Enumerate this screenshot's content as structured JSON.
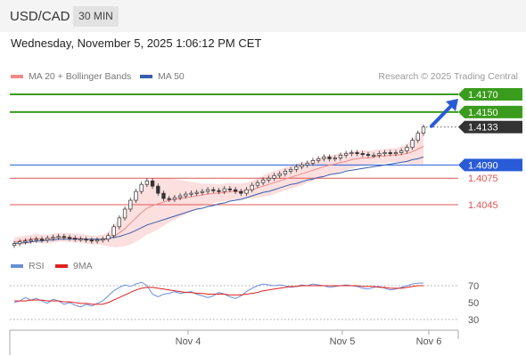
{
  "header": {
    "symbol": "USD/CAD",
    "interval": "30 MIN"
  },
  "timestamp": "Wednesday, November 5, 2025 1:06:12 PM CET",
  "legend": {
    "ma20": {
      "label": "MA 20 + Bollinger Bands",
      "color": "#f08a8a"
    },
    "ma50": {
      "label": "MA 50",
      "color": "#3a5da8"
    }
  },
  "credit": "Research © 2025 Trading Central",
  "rsi_legend": {
    "rsi": {
      "label": "RSI",
      "color": "#6a8fd8"
    },
    "ma9": {
      "label": "9MA",
      "color": "#e02020"
    }
  },
  "chart_data": {
    "type": "candlestick",
    "instrument": "USD/CAD",
    "interval": "30 MIN",
    "price_axis_range": [
      1.4005,
      1.4185
    ],
    "levels": [
      {
        "value": "1.4170",
        "color": "#3a9c1c",
        "style": "resistance"
      },
      {
        "value": "1.4150",
        "color": "#3a9c1c",
        "style": "resistance"
      },
      {
        "value": "1.4133",
        "color": "#333333",
        "style": "last-price"
      },
      {
        "value": "1.4090",
        "color": "#2a5bd7",
        "style": "pivot"
      },
      {
        "value": "1.4075",
        "color": "#e05555",
        "style": "support"
      },
      {
        "value": "1.4045",
        "color": "#e05555",
        "style": "support"
      }
    ],
    "x_ticks": [
      "Nov 4",
      "Nov 5",
      "Nov 6"
    ],
    "trend_arrow": {
      "from": 1.4133,
      "to": 1.4165,
      "direction": "up",
      "color": "#2a5bd7"
    },
    "price_series": [
      1.4001,
      1.4003,
      1.4004,
      1.4005,
      1.4006,
      1.4005,
      1.4007,
      1.4008,
      1.4009,
      1.4008,
      1.4007,
      1.4006,
      1.4006,
      1.4005,
      1.4004,
      1.4005,
      1.4006,
      1.401,
      1.402,
      1.403,
      1.404,
      1.405,
      1.406,
      1.4068,
      1.4072,
      1.4066,
      1.4058,
      1.4052,
      1.4051,
      1.4053,
      1.4055,
      1.4057,
      1.4058,
      1.4059,
      1.406,
      1.4062,
      1.4061,
      1.406,
      1.4063,
      1.4062,
      1.406,
      1.4058,
      1.4062,
      1.4067,
      1.407,
      1.4073,
      1.4075,
      1.4078,
      1.408,
      1.4083,
      1.4085,
      1.4088,
      1.409,
      1.4092,
      1.4095,
      1.4097,
      1.4099,
      1.4097,
      1.4098,
      1.4101,
      1.4103,
      1.4104,
      1.4103,
      1.4102,
      1.4101,
      1.4101,
      1.4103,
      1.4104,
      1.4103,
      1.4104,
      1.4106,
      1.411,
      1.4118,
      1.4126,
      1.4133
    ],
    "ma20_series": [
      1.4003,
      1.4004,
      1.4005,
      1.4006,
      1.4007,
      1.4006,
      1.4006,
      1.4007,
      1.4008,
      1.4008,
      1.4008,
      1.4007,
      1.4007,
      1.4006,
      1.4005,
      1.4005,
      1.4005,
      1.4006,
      1.4009,
      1.4013,
      1.4018,
      1.4024,
      1.403,
      1.4036,
      1.4041,
      1.4044,
      1.4046,
      1.4048,
      1.405,
      1.4051,
      1.4052,
      1.4053,
      1.4054,
      1.4055,
      1.4056,
      1.4057,
      1.4058,
      1.4058,
      1.4059,
      1.406,
      1.406,
      1.406,
      1.4061,
      1.4062,
      1.4064,
      1.4066,
      1.4068,
      1.407,
      1.4072,
      1.4074,
      1.4076,
      1.4078,
      1.408,
      1.4082,
      1.4084,
      1.4086,
      1.4088,
      1.409,
      1.4091,
      1.4093,
      1.4094,
      1.4096,
      1.4097,
      1.4098,
      1.4098,
      1.4099,
      1.41,
      1.41,
      1.4101,
      1.4101,
      1.4102,
      1.4103,
      1.4105,
      1.4108,
      1.4111
    ],
    "ma50_series": [
      1.4001,
      1.4002,
      1.4002,
      1.4003,
      1.4004,
      1.4004,
      1.4005,
      1.4005,
      1.4006,
      1.4006,
      1.4006,
      1.4006,
      1.4006,
      1.4006,
      1.4006,
      1.4006,
      1.4006,
      1.4007,
      1.4008,
      1.4009,
      1.4011,
      1.4013,
      1.4016,
      1.4019,
      1.4022,
      1.4024,
      1.4026,
      1.4028,
      1.403,
      1.4032,
      1.4034,
      1.4036,
      1.4038,
      1.404,
      1.4041,
      1.4043,
      1.4044,
      1.4046,
      1.4047,
      1.4049,
      1.405,
      1.4051,
      1.4053,
      1.4055,
      1.4057,
      1.4059,
      1.406,
      1.4062,
      1.4064,
      1.4066,
      1.4068,
      1.4069,
      1.4071,
      1.4073,
      1.4074,
      1.4076,
      1.4077,
      1.4079,
      1.408,
      1.4081,
      1.4083,
      1.4084,
      1.4085,
      1.4086,
      1.4087,
      1.4088,
      1.4089,
      1.409,
      1.4091,
      1.4092,
      1.4093,
      1.4094,
      1.4096,
      1.4097,
      1.4099
    ],
    "bb_width_series": [
      0.0005,
      0.0005,
      0.0005,
      0.0005,
      0.0005,
      0.0005,
      0.0005,
      0.0005,
      0.0005,
      0.0005,
      0.0005,
      0.0005,
      0.0005,
      0.0005,
      0.0005,
      0.0005,
      0.0006,
      0.0008,
      0.0012,
      0.0016,
      0.002,
      0.0024,
      0.0027,
      0.0029,
      0.003,
      0.003,
      0.0029,
      0.0027,
      0.0025,
      0.0023,
      0.0021,
      0.0019,
      0.0017,
      0.0015,
      0.0013,
      0.0012,
      0.0011,
      0.001,
      0.001,
      0.001,
      0.0009,
      0.0009,
      0.0009,
      0.001,
      0.0011,
      0.0012,
      0.0013,
      0.0013,
      0.0013,
      0.0013,
      0.0013,
      0.0013,
      0.0013,
      0.0012,
      0.0012,
      0.0012,
      0.0012,
      0.0011,
      0.0011,
      0.0011,
      0.001,
      0.001,
      0.0009,
      0.0009,
      0.0008,
      0.0008,
      0.0008,
      0.0008,
      0.0008,
      0.0008,
      0.0009,
      0.0011,
      0.0014,
      0.0017,
      0.002
    ],
    "rsi": {
      "range": [
        20,
        80
      ],
      "ticks": [
        "70",
        "50",
        "30"
      ],
      "rsi_series": [
        50,
        52,
        56,
        53,
        55,
        52,
        49,
        54,
        52,
        48,
        50,
        47,
        45,
        48,
        46,
        49,
        52,
        58,
        64,
        68,
        71,
        69,
        72,
        74,
        70,
        60,
        57,
        60,
        61,
        63,
        61,
        62,
        63,
        60,
        58,
        56,
        58,
        62,
        60,
        57,
        55,
        58,
        63,
        67,
        70,
        72,
        71,
        70,
        71,
        70,
        68,
        69,
        71,
        70,
        72,
        71,
        70,
        68,
        69,
        70,
        71,
        70,
        69,
        67,
        66,
        68,
        69,
        67,
        65,
        66,
        68,
        70,
        72,
        73,
        73
      ],
      "ma9_series": [
        52,
        52,
        52,
        53,
        53,
        53,
        52,
        52,
        52,
        51,
        51,
        50,
        49,
        49,
        48,
        48,
        48,
        50,
        53,
        56,
        59,
        62,
        65,
        67,
        68,
        68,
        67,
        66,
        65,
        64,
        63,
        62,
        62,
        61,
        61,
        60,
        60,
        60,
        60,
        59,
        59,
        59,
        60,
        61,
        62,
        64,
        65,
        66,
        67,
        68,
        69,
        69,
        70,
        70,
        70,
        70,
        70,
        70,
        70,
        70,
        70,
        70,
        70,
        69,
        69,
        69,
        68,
        68,
        67,
        67,
        67,
        68,
        69,
        70,
        70
      ]
    }
  }
}
